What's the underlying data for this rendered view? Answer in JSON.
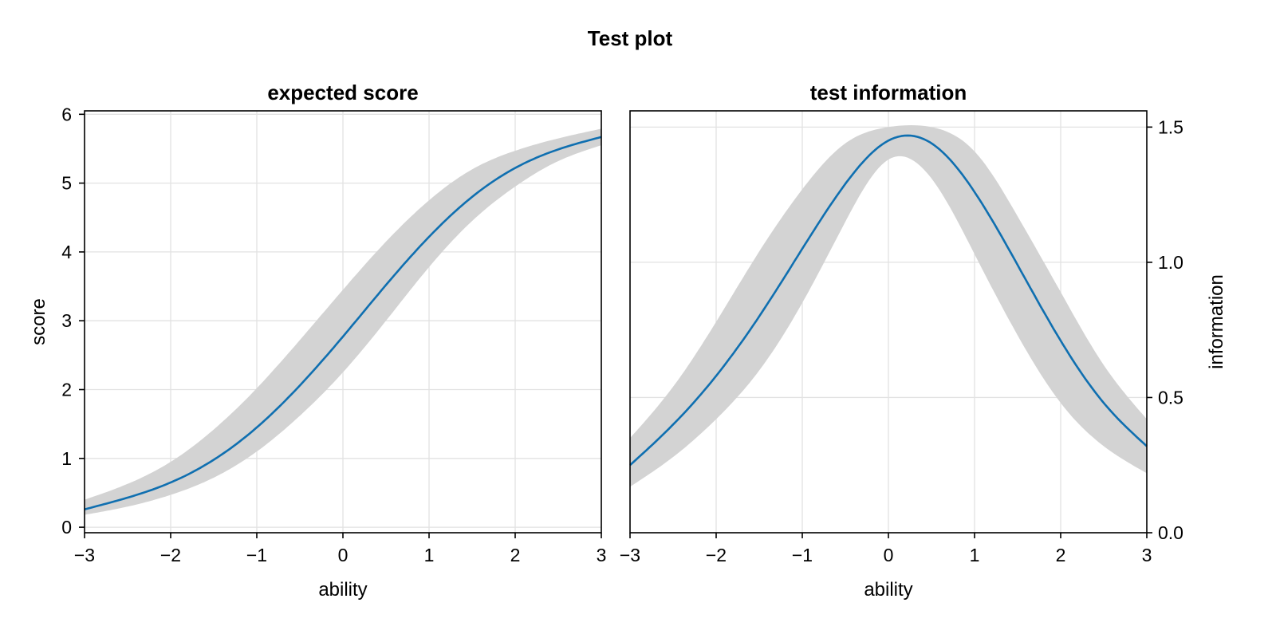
{
  "figure": {
    "title": "Test plot"
  },
  "colors": {
    "band": "#d3d3d3",
    "line": "#0f6fb0",
    "grid": "#e2e2e2"
  },
  "chart_data": [
    {
      "type": "line",
      "title": "expected score",
      "xlabel": "ability",
      "ylabel": "score",
      "xlim": [
        -3,
        3
      ],
      "ylim": [
        -0.08,
        6.05
      ],
      "xticks": [
        -3,
        -2,
        -1,
        0,
        1,
        2,
        3
      ],
      "xtick_labels": [
        "−3",
        "−2",
        "−1",
        "0",
        "1",
        "2",
        "3"
      ],
      "yticks": [
        0,
        1,
        2,
        3,
        4,
        5,
        6
      ],
      "ytick_labels": [
        "0",
        "1",
        "2",
        "3",
        "4",
        "5",
        "6"
      ],
      "yaxis_side": "left",
      "grid": true,
      "x": [
        -3,
        -2.5,
        -2,
        -1.5,
        -1,
        -0.5,
        0,
        0.5,
        1,
        1.5,
        2,
        2.5,
        3
      ],
      "band_upper": [
        0.4,
        0.63,
        0.95,
        1.42,
        2.02,
        2.72,
        3.45,
        4.15,
        4.75,
        5.2,
        5.47,
        5.65,
        5.79
      ],
      "band_lower": [
        0.18,
        0.3,
        0.47,
        0.72,
        1.1,
        1.62,
        2.25,
        3.0,
        3.78,
        4.45,
        4.95,
        5.32,
        5.55
      ],
      "series": [
        {
          "values": [
            0.26,
            0.43,
            0.65,
            0.98,
            1.45,
            2.06,
            2.77,
            3.52,
            4.22,
            4.8,
            5.22,
            5.49,
            5.67
          ]
        }
      ]
    },
    {
      "type": "line",
      "title": "test information",
      "xlabel": "ability",
      "ylabel": "information",
      "xlim": [
        -3,
        3
      ],
      "ylim": [
        0,
        1.56
      ],
      "xticks": [
        -3,
        -2,
        -1,
        0,
        1,
        2,
        3
      ],
      "xtick_labels": [
        "−3",
        "−2",
        "−1",
        "0",
        "1",
        "2",
        "3"
      ],
      "yticks": [
        0.0,
        0.5,
        1.0,
        1.5
      ],
      "ytick_labels": [
        "0.0",
        "0.5",
        "1.0",
        "1.5"
      ],
      "yaxis_side": "right",
      "grid": true,
      "x": [
        -3,
        -2.5,
        -2,
        -1.5,
        -1,
        -0.5,
        0,
        0.5,
        1,
        1.5,
        2,
        2.5,
        3
      ],
      "band_upper": [
        0.35,
        0.54,
        0.78,
        1.04,
        1.27,
        1.44,
        1.5,
        1.5,
        1.41,
        1.17,
        0.89,
        0.62,
        0.42
      ],
      "band_lower": [
        0.17,
        0.28,
        0.42,
        0.6,
        0.85,
        1.15,
        1.38,
        1.31,
        1.03,
        0.73,
        0.48,
        0.32,
        0.22
      ],
      "series": [
        {
          "values": [
            0.25,
            0.4,
            0.58,
            0.8,
            1.05,
            1.29,
            1.45,
            1.44,
            1.26,
            0.99,
            0.71,
            0.48,
            0.32
          ]
        }
      ]
    }
  ]
}
